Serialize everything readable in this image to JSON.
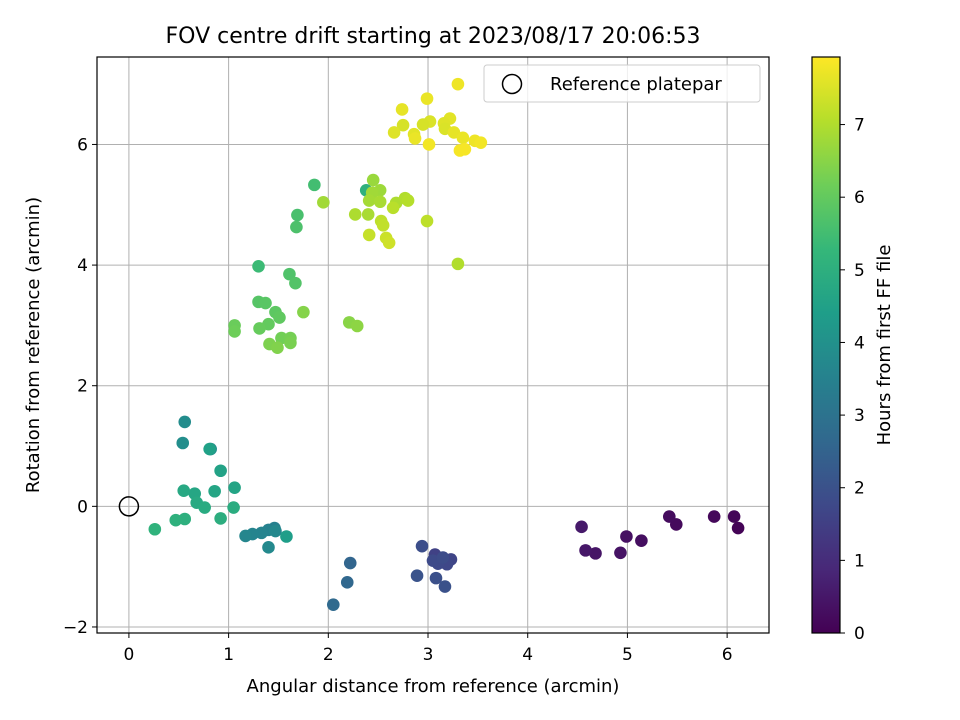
{
  "chart_data": {
    "type": "scatter",
    "title": "FOV centre drift starting at 2023/08/17 20:06:53",
    "xlabel": "Angular distance from reference (arcmin)",
    "ylabel": "Rotation from reference (arcmin)",
    "xlim": [
      -0.32,
      6.42
    ],
    "ylim": [
      -2.1,
      7.45
    ],
    "xticks": [
      0,
      1,
      2,
      3,
      4,
      5,
      6
    ],
    "yticks": [
      -2,
      0,
      2,
      4,
      6
    ],
    "grid": true,
    "legend": {
      "location": "upper right",
      "entries": [
        "Reference platepar"
      ]
    },
    "reference_point": {
      "label": "Reference platepar",
      "x": 0,
      "y": 0
    },
    "colorbar": {
      "label": "Hours from first FF file",
      "colormap": "viridis",
      "range": [
        0,
        7.93
      ],
      "ticks": [
        0,
        1,
        2,
        3,
        4,
        5,
        6,
        7
      ]
    },
    "colormap_stops": [
      "#440154",
      "#482878",
      "#3e4989",
      "#31688e",
      "#26828e",
      "#1f9e89",
      "#35b779",
      "#6ece58",
      "#b5de2b",
      "#fde725"
    ],
    "series": [
      {
        "marker": "circle",
        "points": [
          {
            "x": 6.11,
            "y": -0.36,
            "h": 0.05
          },
          {
            "x": 6.07,
            "y": -0.17,
            "h": 0.1
          },
          {
            "x": 5.87,
            "y": -0.17,
            "h": 0.15
          },
          {
            "x": 5.49,
            "y": -0.3,
            "h": 0.2
          },
          {
            "x": 5.42,
            "y": -0.17,
            "h": 0.25
          },
          {
            "x": 5.14,
            "y": -0.57,
            "h": 0.3
          },
          {
            "x": 4.99,
            "y": -0.5,
            "h": 0.35
          },
          {
            "x": 4.93,
            "y": -0.77,
            "h": 0.4
          },
          {
            "x": 4.68,
            "y": -0.78,
            "h": 0.45
          },
          {
            "x": 4.58,
            "y": -0.73,
            "h": 0.5
          },
          {
            "x": 4.54,
            "y": -0.34,
            "h": 0.55
          },
          {
            "x": 3.07,
            "y": -0.8,
            "h": 1.55
          },
          {
            "x": 3.16,
            "y": -0.9,
            "h": 1.6
          },
          {
            "x": 3.23,
            "y": -0.88,
            "h": 1.65
          },
          {
            "x": 3.19,
            "y": -0.96,
            "h": 1.7
          },
          {
            "x": 3.1,
            "y": -0.95,
            "h": 1.75
          },
          {
            "x": 3.05,
            "y": -0.9,
            "h": 1.8
          },
          {
            "x": 3.15,
            "y": -0.85,
            "h": 1.85
          },
          {
            "x": 2.94,
            "y": -0.66,
            "h": 1.9
          },
          {
            "x": 3.08,
            "y": -1.19,
            "h": 1.95
          },
          {
            "x": 3.17,
            "y": -1.33,
            "h": 2.0
          },
          {
            "x": 2.89,
            "y": -1.15,
            "h": 2.05
          },
          {
            "x": 2.22,
            "y": -0.94,
            "h": 2.6
          },
          {
            "x": 2.19,
            "y": -1.26,
            "h": 2.65
          },
          {
            "x": 2.05,
            "y": -1.63,
            "h": 2.7
          },
          {
            "x": 1.46,
            "y": -0.36,
            "h": 3.45
          },
          {
            "x": 1.4,
            "y": -0.39,
            "h": 3.5
          },
          {
            "x": 1.33,
            "y": -0.44,
            "h": 3.55
          },
          {
            "x": 1.24,
            "y": -0.46,
            "h": 3.6
          },
          {
            "x": 1.17,
            "y": -0.49,
            "h": 3.65
          },
          {
            "x": 1.47,
            "y": -0.41,
            "h": 3.7
          },
          {
            "x": 1.4,
            "y": -0.68,
            "h": 3.75
          },
          {
            "x": 0.82,
            "y": 0.95,
            "h": 3.8
          },
          {
            "x": 0.56,
            "y": 1.4,
            "h": 3.85
          },
          {
            "x": 0.54,
            "y": 1.05,
            "h": 3.9
          },
          {
            "x": 1.58,
            "y": -0.5,
            "h": 4.4
          },
          {
            "x": 0.81,
            "y": 0.95,
            "h": 4.5
          },
          {
            "x": 0.92,
            "y": 0.59,
            "h": 4.55
          },
          {
            "x": 1.06,
            "y": 0.31,
            "h": 4.6
          },
          {
            "x": 0.86,
            "y": 0.25,
            "h": 4.65
          },
          {
            "x": 0.66,
            "y": 0.21,
            "h": 4.7
          },
          {
            "x": 0.55,
            "y": 0.26,
            "h": 4.75
          },
          {
            "x": 0.68,
            "y": 0.06,
            "h": 4.8
          },
          {
            "x": 0.76,
            "y": -0.02,
            "h": 4.85
          },
          {
            "x": 1.05,
            "y": -0.02,
            "h": 4.9
          },
          {
            "x": 0.92,
            "y": -0.2,
            "h": 4.95
          },
          {
            "x": 0.56,
            "y": -0.21,
            "h": 5.0
          },
          {
            "x": 0.47,
            "y": -0.23,
            "h": 5.05
          },
          {
            "x": 0.26,
            "y": -0.38,
            "h": 5.1
          },
          {
            "x": 2.38,
            "y": 5.24,
            "h": 5.05
          },
          {
            "x": 1.3,
            "y": 3.98,
            "h": 5.4
          },
          {
            "x": 1.86,
            "y": 5.33,
            "h": 5.5
          },
          {
            "x": 1.69,
            "y": 4.83,
            "h": 5.6
          },
          {
            "x": 1.68,
            "y": 4.63,
            "h": 5.65
          },
          {
            "x": 1.61,
            "y": 3.85,
            "h": 5.7
          },
          {
            "x": 1.67,
            "y": 3.7,
            "h": 5.75
          },
          {
            "x": 1.3,
            "y": 3.39,
            "h": 5.8
          },
          {
            "x": 1.37,
            "y": 3.37,
            "h": 5.85
          },
          {
            "x": 1.47,
            "y": 3.22,
            "h": 5.9
          },
          {
            "x": 1.51,
            "y": 3.13,
            "h": 5.95
          },
          {
            "x": 1.4,
            "y": 3.02,
            "h": 6.0
          },
          {
            "x": 1.31,
            "y": 2.95,
            "h": 6.05
          },
          {
            "x": 1.06,
            "y": 3.0,
            "h": 6.1
          },
          {
            "x": 1.06,
            "y": 2.9,
            "h": 6.15
          },
          {
            "x": 1.53,
            "y": 2.79,
            "h": 6.2
          },
          {
            "x": 1.62,
            "y": 2.79,
            "h": 6.25
          },
          {
            "x": 1.62,
            "y": 2.71,
            "h": 6.3
          },
          {
            "x": 1.41,
            "y": 2.69,
            "h": 6.35
          },
          {
            "x": 1.49,
            "y": 2.63,
            "h": 6.4
          },
          {
            "x": 1.75,
            "y": 3.22,
            "h": 6.45
          },
          {
            "x": 2.21,
            "y": 3.05,
            "h": 6.5
          },
          {
            "x": 2.29,
            "y": 2.99,
            "h": 6.55
          },
          {
            "x": 1.95,
            "y": 5.04,
            "h": 6.8
          },
          {
            "x": 2.45,
            "y": 5.41,
            "h": 6.7
          },
          {
            "x": 2.52,
            "y": 5.24,
            "h": 6.75
          },
          {
            "x": 2.44,
            "y": 5.2,
            "h": 6.8
          },
          {
            "x": 2.41,
            "y": 5.07,
            "h": 6.85
          },
          {
            "x": 2.52,
            "y": 5.05,
            "h": 6.9
          },
          {
            "x": 2.68,
            "y": 5.03,
            "h": 6.95
          },
          {
            "x": 2.77,
            "y": 5.11,
            "h": 7.0
          },
          {
            "x": 2.8,
            "y": 5.07,
            "h": 7.05
          },
          {
            "x": 2.65,
            "y": 4.95,
            "h": 7.1
          },
          {
            "x": 2.4,
            "y": 4.84,
            "h": 6.9
          },
          {
            "x": 2.27,
            "y": 4.84,
            "h": 6.95
          },
          {
            "x": 2.53,
            "y": 4.73,
            "h": 7.15
          },
          {
            "x": 2.55,
            "y": 4.66,
            "h": 7.2
          },
          {
            "x": 2.41,
            "y": 4.5,
            "h": 7.25
          },
          {
            "x": 2.58,
            "y": 4.45,
            "h": 7.3
          },
          {
            "x": 2.61,
            "y": 4.37,
            "h": 7.35
          },
          {
            "x": 2.99,
            "y": 4.73,
            "h": 7.15
          },
          {
            "x": 3.3,
            "y": 4.02,
            "h": 7.0
          },
          {
            "x": 3.3,
            "y": 7.0,
            "h": 7.75
          },
          {
            "x": 2.99,
            "y": 6.76,
            "h": 7.7
          },
          {
            "x": 2.74,
            "y": 6.58,
            "h": 7.65
          },
          {
            "x": 3.22,
            "y": 6.43,
            "h": 7.6
          },
          {
            "x": 3.16,
            "y": 6.35,
            "h": 7.55
          },
          {
            "x": 3.02,
            "y": 6.38,
            "h": 7.5
          },
          {
            "x": 2.95,
            "y": 6.33,
            "h": 7.45
          },
          {
            "x": 2.75,
            "y": 6.32,
            "h": 7.45
          },
          {
            "x": 3.17,
            "y": 6.26,
            "h": 7.5
          },
          {
            "x": 2.66,
            "y": 6.2,
            "h": 7.55
          },
          {
            "x": 2.86,
            "y": 6.17,
            "h": 7.6
          },
          {
            "x": 3.26,
            "y": 6.2,
            "h": 7.65
          },
          {
            "x": 3.35,
            "y": 6.11,
            "h": 7.7
          },
          {
            "x": 2.87,
            "y": 6.1,
            "h": 7.7
          },
          {
            "x": 3.47,
            "y": 6.06,
            "h": 7.75
          },
          {
            "x": 3.53,
            "y": 6.03,
            "h": 7.8
          },
          {
            "x": 3.01,
            "y": 6.0,
            "h": 7.8
          },
          {
            "x": 3.32,
            "y": 5.9,
            "h": 7.85
          },
          {
            "x": 3.37,
            "y": 5.92,
            "h": 7.85
          }
        ]
      }
    ]
  }
}
